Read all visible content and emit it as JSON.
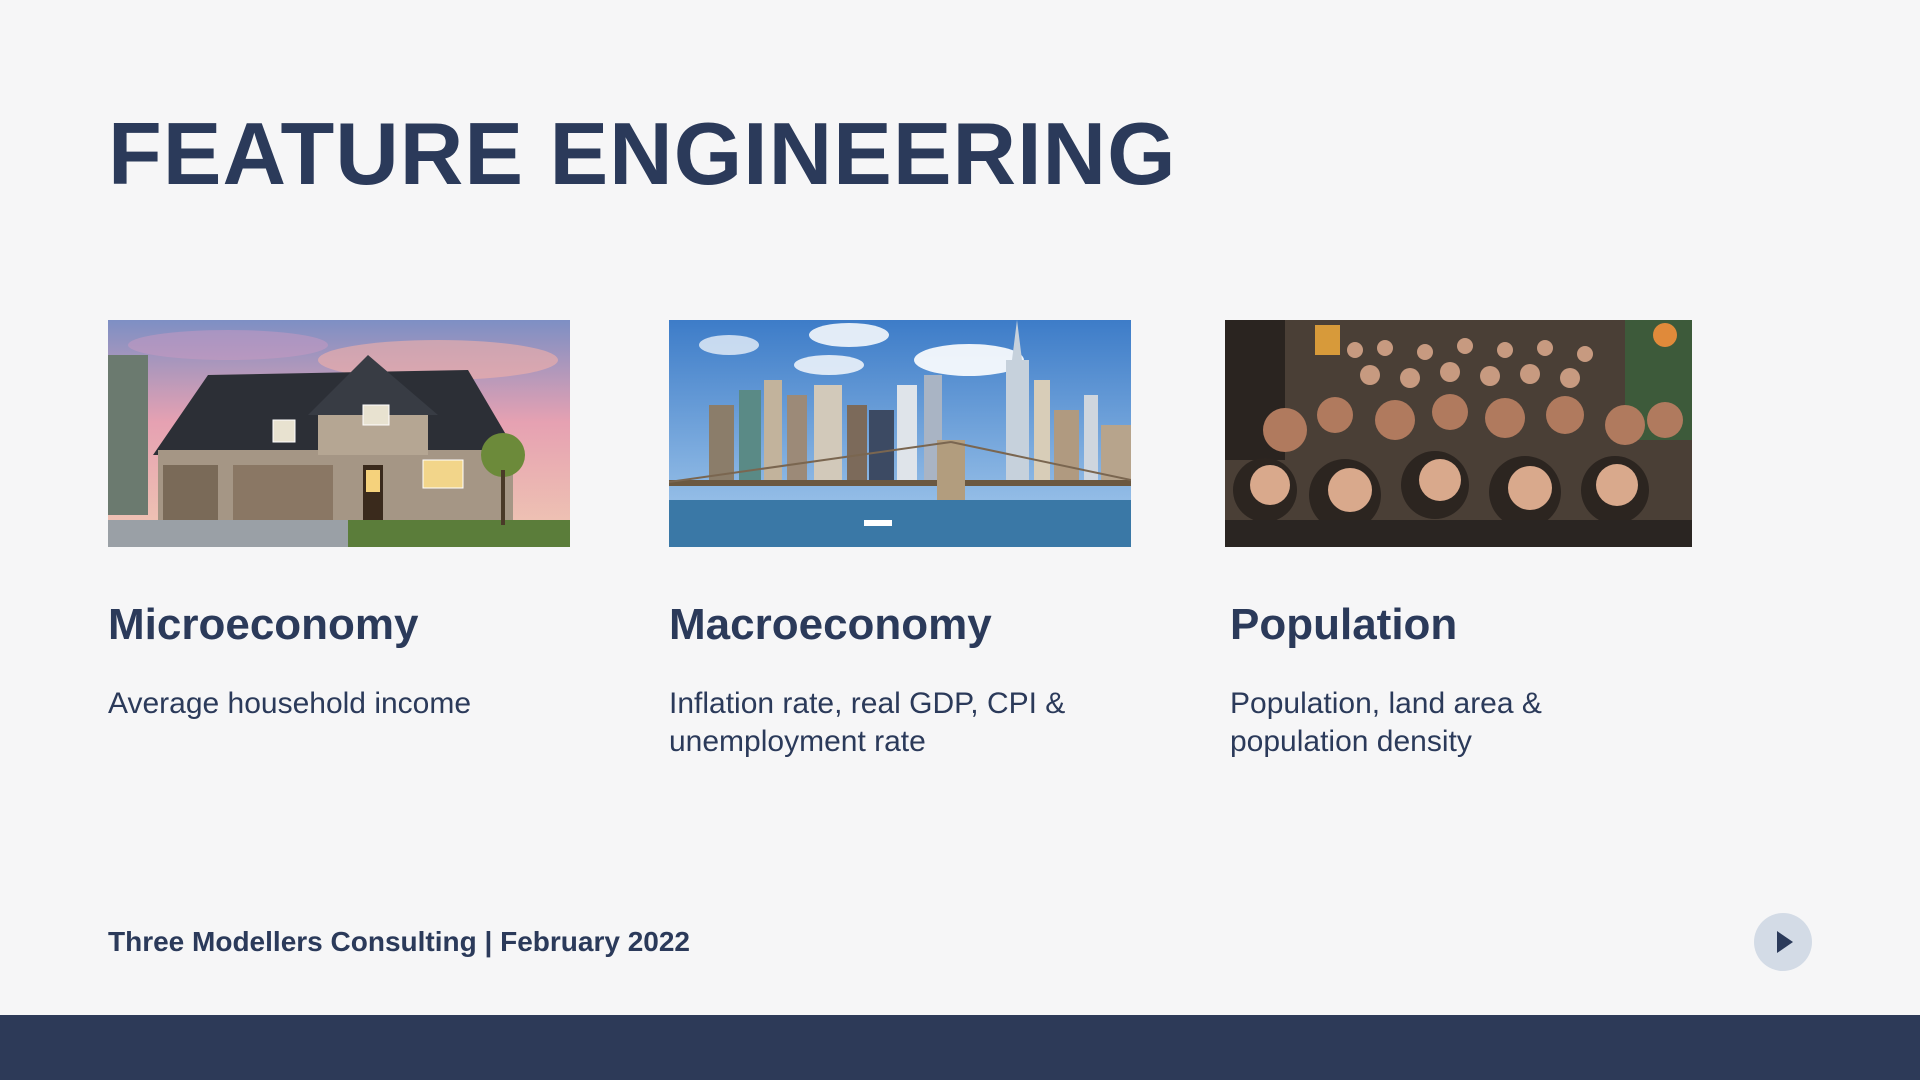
{
  "slide": {
    "title": "FEATURE ENGINEERING"
  },
  "cards": [
    {
      "title": "Microeconomy",
      "description": "Average household income",
      "image": "suburban-house-photo"
    },
    {
      "title": "Macroeconomy",
      "description": "Inflation rate, real GDP, CPI & unemployment rate",
      "image": "city-skyline-bridge-photo"
    },
    {
      "title": "Population",
      "description": "Population, land area & population density",
      "image": "crowd-of-people-photo"
    }
  ],
  "footer": {
    "text": "Three Modellers Consulting | February 2022",
    "next_icon": "play-triangle-icon"
  },
  "colors": {
    "background": "#f6f6f7",
    "text": "#2b3a5a",
    "bottom_bar": "#2d3a58",
    "button_bg": "#d3dbe6"
  }
}
